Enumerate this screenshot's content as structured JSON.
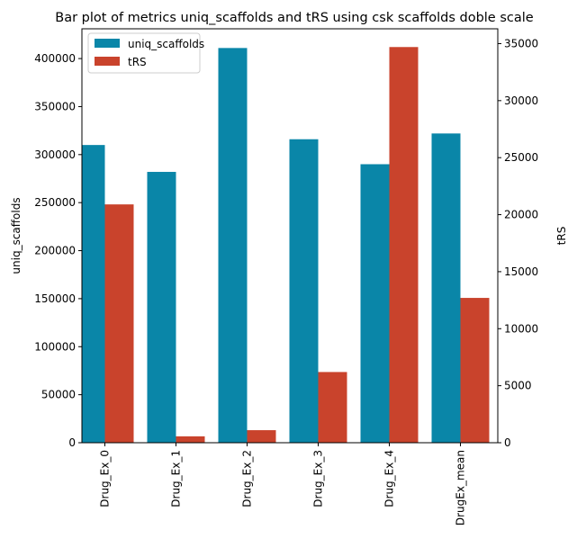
{
  "chart_data": {
    "type": "bar",
    "title": "Bar plot of metrics uniq_scaffolds and tRS using csk scaffolds doble scale",
    "categories": [
      "Drug_Ex_0",
      "Drug_Ex_1",
      "Drug_Ex_2",
      "Drug_Ex_3",
      "Drug_Ex_4",
      "DrugEx_mean"
    ],
    "series": [
      {
        "name": "uniq_scaffolds",
        "axis": "left",
        "color": "#0a86a8",
        "values": [
          310000,
          282000,
          411000,
          316000,
          290000,
          322000
        ]
      },
      {
        "name": "tRS",
        "axis": "right",
        "color": "#c9432c",
        "values": [
          20900,
          560,
          1100,
          6200,
          34700,
          12700
        ]
      }
    ],
    "y_left": {
      "label": "uniq_scaffolds",
      "lim": [
        0,
        431000
      ],
      "ticks": [
        0,
        50000,
        100000,
        150000,
        200000,
        250000,
        300000,
        350000,
        400000
      ]
    },
    "y_right": {
      "label": "tRS",
      "lim": [
        0,
        36300
      ],
      "ticks": [
        0,
        5000,
        10000,
        15000,
        20000,
        25000,
        30000,
        35000
      ]
    },
    "grid": false,
    "legend_position": "top-left"
  }
}
